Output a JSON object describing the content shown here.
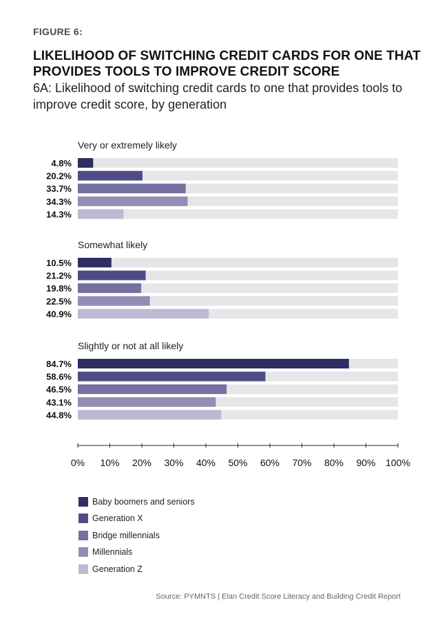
{
  "figure_label": "FIGURE 6:",
  "title": "Likelihood of switching credit cards for one that provides tools to improve credit score",
  "subtitle": "6A: Likelihood of switching credit cards to one that provides tools to improve credit score, by generation",
  "source": "Source: PYMNTS | Elan   Credit Score Literacy and Building Credit Report",
  "chart_data": {
    "type": "bar",
    "orientation": "horizontal",
    "unit": "%",
    "xlim": [
      0,
      100
    ],
    "xticks": [
      0,
      10,
      20,
      30,
      40,
      50,
      60,
      70,
      80,
      90,
      100
    ],
    "tick_labels": [
      "0%",
      "10%",
      "20%",
      "30%",
      "40%",
      "50%",
      "60%",
      "70%",
      "80%",
      "90%",
      "100%"
    ],
    "series": [
      {
        "name": "Baby boomers and seniors",
        "color": "#2f2d63"
      },
      {
        "name": "Generation X",
        "color": "#4f4c85"
      },
      {
        "name": "Bridge millennials",
        "color": "#74709f"
      },
      {
        "name": "Millennials",
        "color": "#928db5"
      },
      {
        "name": "Generation Z",
        "color": "#bdb9d2"
      }
    ],
    "groups": [
      {
        "label": "Very or extremely likely",
        "values": [
          4.8,
          20.2,
          33.7,
          34.3,
          14.3
        ],
        "labels": [
          "4.8%",
          "20.2%",
          "33.7%",
          "34.3%",
          "14.3%"
        ]
      },
      {
        "label": "Somewhat likely",
        "values": [
          10.5,
          21.2,
          19.8,
          22.5,
          40.9
        ],
        "labels": [
          "10.5%",
          "21.2%",
          "19.8%",
          "22.5%",
          "40.9%"
        ]
      },
      {
        "label": "Slightly or not at all likely",
        "values": [
          84.7,
          58.6,
          46.5,
          43.1,
          44.8
        ],
        "labels": [
          "84.7%",
          "58.6%",
          "46.5%",
          "43.1%",
          "44.8%"
        ]
      }
    ],
    "track_color": "#e6e6e9"
  }
}
